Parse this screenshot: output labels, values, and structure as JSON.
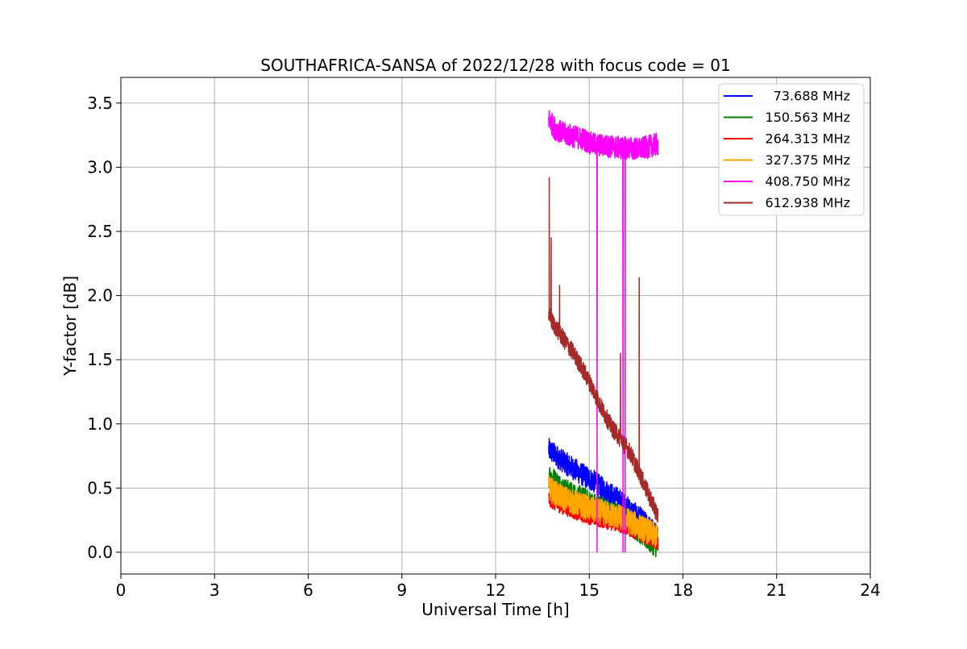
{
  "chart_data": {
    "type": "line",
    "title": "SOUTHAFRICA-SANSA of 2022/12/28 with focus code = 01",
    "xlabel": "Universal Time [h]",
    "ylabel": "Y-factor [dB]",
    "xlim": [
      0,
      24
    ],
    "ylim": [
      -0.17,
      3.7
    ],
    "xticks": [
      0,
      3,
      6,
      9,
      12,
      15,
      18,
      21,
      24
    ],
    "xtick_labels": [
      "0",
      "3",
      "6",
      "9",
      "12",
      "15",
      "18",
      "21",
      "24"
    ],
    "yticks": [
      0.0,
      0.5,
      1.0,
      1.5,
      2.0,
      2.5,
      3.0,
      3.5
    ],
    "ytick_labels": [
      "0.0",
      "0.5",
      "1.0",
      "1.5",
      "2.0",
      "2.5",
      "3.0",
      "3.5"
    ],
    "grid": true,
    "legend_position": "top-right",
    "series": [
      {
        "name": "73.688 MHz",
        "color": "#0000ff",
        "x": [
          13.7,
          13.9,
          14.2,
          14.5,
          14.8,
          15.1,
          15.4,
          15.7,
          16.0,
          16.3,
          16.6,
          16.9,
          17.2
        ],
        "y": [
          0.8,
          0.76,
          0.7,
          0.65,
          0.6,
          0.56,
          0.5,
          0.45,
          0.4,
          0.33,
          0.27,
          0.2,
          0.12
        ],
        "spread": 0.09
      },
      {
        "name": "150.563 MHz",
        "color": "#008000",
        "x": [
          13.7,
          13.9,
          14.2,
          14.5,
          14.8,
          15.1,
          15.4,
          15.7,
          16.0,
          16.3,
          16.6,
          16.9,
          17.2
        ],
        "y": [
          0.6,
          0.55,
          0.48,
          0.44,
          0.41,
          0.37,
          0.34,
          0.3,
          0.27,
          0.23,
          0.17,
          0.1,
          0.05
        ],
        "spread": 0.1
      },
      {
        "name": "264.313 MHz",
        "color": "#ff0000",
        "x": [
          13.7,
          13.9,
          14.2,
          14.5,
          14.8,
          15.1,
          15.4,
          15.7,
          16.0,
          16.3,
          16.6,
          16.9,
          17.2
        ],
        "y": [
          0.42,
          0.38,
          0.35,
          0.32,
          0.29,
          0.27,
          0.25,
          0.23,
          0.21,
          0.18,
          0.15,
          0.11,
          0.08
        ],
        "spread": 0.06
      },
      {
        "name": "327.375 MHz",
        "color": "#ffa500",
        "x": [
          13.7,
          13.9,
          14.2,
          14.5,
          14.8,
          15.1,
          15.4,
          15.7,
          16.0,
          16.3,
          16.6,
          16.9,
          17.2
        ],
        "y": [
          0.5,
          0.46,
          0.42,
          0.39,
          0.36,
          0.33,
          0.31,
          0.29,
          0.27,
          0.24,
          0.2,
          0.16,
          0.12
        ],
        "spread": 0.1
      },
      {
        "name": "408.750 MHz",
        "color": "#ff00ff",
        "x": [
          13.7,
          13.9,
          14.2,
          14.5,
          14.8,
          15.1,
          15.4,
          15.7,
          16.0,
          16.3,
          16.6,
          16.9,
          17.2
        ],
        "y": [
          3.38,
          3.3,
          3.26,
          3.24,
          3.22,
          3.18,
          3.17,
          3.16,
          3.15,
          3.15,
          3.14,
          3.16,
          3.18
        ],
        "spread": 0.09,
        "spikes": [
          {
            "x": 15.25,
            "y": 0.0
          },
          {
            "x": 16.08,
            "y": 0.0
          },
          {
            "x": 16.15,
            "y": 0.0
          }
        ]
      },
      {
        "name": "612.938 MHz",
        "color": "#a52a2a",
        "x": [
          13.7,
          13.8,
          13.9,
          14.2,
          14.5,
          14.8,
          15.1,
          15.4,
          15.7,
          16.0,
          16.3,
          16.6,
          16.9,
          17.2
        ],
        "y": [
          1.85,
          1.8,
          1.76,
          1.65,
          1.55,
          1.42,
          1.28,
          1.12,
          0.98,
          0.88,
          0.78,
          0.62,
          0.45,
          0.28
        ],
        "spread": 0.07,
        "spikes": [
          {
            "x": 13.72,
            "y": 2.92
          },
          {
            "x": 13.78,
            "y": 2.45
          },
          {
            "x": 14.05,
            "y": 2.08
          },
          {
            "x": 16.0,
            "y": 1.55
          },
          {
            "x": 16.6,
            "y": 2.14
          }
        ]
      }
    ]
  }
}
